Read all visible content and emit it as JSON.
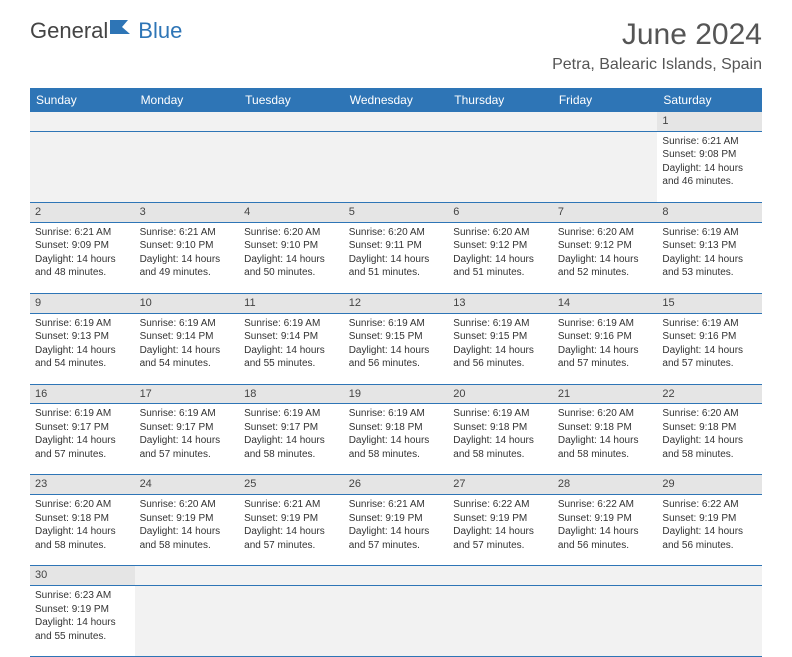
{
  "logo": {
    "text1": "General",
    "text2": "Blue"
  },
  "header": {
    "month": "June 2024",
    "location": "Petra, Balearic Islands, Spain"
  },
  "colors": {
    "header_bg": "#2e75b6",
    "daynum_bg": "#e5e5e5",
    "empty_bg": "#f2f2f2",
    "border": "#2e75b6"
  },
  "weekdays": [
    "Sunday",
    "Monday",
    "Tuesday",
    "Wednesday",
    "Thursday",
    "Friday",
    "Saturday"
  ],
  "weeks": [
    {
      "nums": [
        "",
        "",
        "",
        "",
        "",
        "",
        "1"
      ],
      "cells": [
        null,
        null,
        null,
        null,
        null,
        null,
        {
          "sunrise": "6:21 AM",
          "sunset": "9:08 PM",
          "daylight": "14 hours and 46 minutes."
        }
      ]
    },
    {
      "nums": [
        "2",
        "3",
        "4",
        "5",
        "6",
        "7",
        "8"
      ],
      "cells": [
        {
          "sunrise": "6:21 AM",
          "sunset": "9:09 PM",
          "daylight": "14 hours and 48 minutes."
        },
        {
          "sunrise": "6:21 AM",
          "sunset": "9:10 PM",
          "daylight": "14 hours and 49 minutes."
        },
        {
          "sunrise": "6:20 AM",
          "sunset": "9:10 PM",
          "daylight": "14 hours and 50 minutes."
        },
        {
          "sunrise": "6:20 AM",
          "sunset": "9:11 PM",
          "daylight": "14 hours and 51 minutes."
        },
        {
          "sunrise": "6:20 AM",
          "sunset": "9:12 PM",
          "daylight": "14 hours and 51 minutes."
        },
        {
          "sunrise": "6:20 AM",
          "sunset": "9:12 PM",
          "daylight": "14 hours and 52 minutes."
        },
        {
          "sunrise": "6:19 AM",
          "sunset": "9:13 PM",
          "daylight": "14 hours and 53 minutes."
        }
      ]
    },
    {
      "nums": [
        "9",
        "10",
        "11",
        "12",
        "13",
        "14",
        "15"
      ],
      "cells": [
        {
          "sunrise": "6:19 AM",
          "sunset": "9:13 PM",
          "daylight": "14 hours and 54 minutes."
        },
        {
          "sunrise": "6:19 AM",
          "sunset": "9:14 PM",
          "daylight": "14 hours and 54 minutes."
        },
        {
          "sunrise": "6:19 AM",
          "sunset": "9:14 PM",
          "daylight": "14 hours and 55 minutes."
        },
        {
          "sunrise": "6:19 AM",
          "sunset": "9:15 PM",
          "daylight": "14 hours and 56 minutes."
        },
        {
          "sunrise": "6:19 AM",
          "sunset": "9:15 PM",
          "daylight": "14 hours and 56 minutes."
        },
        {
          "sunrise": "6:19 AM",
          "sunset": "9:16 PM",
          "daylight": "14 hours and 57 minutes."
        },
        {
          "sunrise": "6:19 AM",
          "sunset": "9:16 PM",
          "daylight": "14 hours and 57 minutes."
        }
      ]
    },
    {
      "nums": [
        "16",
        "17",
        "18",
        "19",
        "20",
        "21",
        "22"
      ],
      "cells": [
        {
          "sunrise": "6:19 AM",
          "sunset": "9:17 PM",
          "daylight": "14 hours and 57 minutes."
        },
        {
          "sunrise": "6:19 AM",
          "sunset": "9:17 PM",
          "daylight": "14 hours and 57 minutes."
        },
        {
          "sunrise": "6:19 AM",
          "sunset": "9:17 PM",
          "daylight": "14 hours and 58 minutes."
        },
        {
          "sunrise": "6:19 AM",
          "sunset": "9:18 PM",
          "daylight": "14 hours and 58 minutes."
        },
        {
          "sunrise": "6:19 AM",
          "sunset": "9:18 PM",
          "daylight": "14 hours and 58 minutes."
        },
        {
          "sunrise": "6:20 AM",
          "sunset": "9:18 PM",
          "daylight": "14 hours and 58 minutes."
        },
        {
          "sunrise": "6:20 AM",
          "sunset": "9:18 PM",
          "daylight": "14 hours and 58 minutes."
        }
      ]
    },
    {
      "nums": [
        "23",
        "24",
        "25",
        "26",
        "27",
        "28",
        "29"
      ],
      "cells": [
        {
          "sunrise": "6:20 AM",
          "sunset": "9:18 PM",
          "daylight": "14 hours and 58 minutes."
        },
        {
          "sunrise": "6:20 AM",
          "sunset": "9:19 PM",
          "daylight": "14 hours and 58 minutes."
        },
        {
          "sunrise": "6:21 AM",
          "sunset": "9:19 PM",
          "daylight": "14 hours and 57 minutes."
        },
        {
          "sunrise": "6:21 AM",
          "sunset": "9:19 PM",
          "daylight": "14 hours and 57 minutes."
        },
        {
          "sunrise": "6:22 AM",
          "sunset": "9:19 PM",
          "daylight": "14 hours and 57 minutes."
        },
        {
          "sunrise": "6:22 AM",
          "sunset": "9:19 PM",
          "daylight": "14 hours and 56 minutes."
        },
        {
          "sunrise": "6:22 AM",
          "sunset": "9:19 PM",
          "daylight": "14 hours and 56 minutes."
        }
      ]
    },
    {
      "nums": [
        "30",
        "",
        "",
        "",
        "",
        "",
        ""
      ],
      "cells": [
        {
          "sunrise": "6:23 AM",
          "sunset": "9:19 PM",
          "daylight": "14 hours and 55 minutes."
        },
        null,
        null,
        null,
        null,
        null,
        null
      ]
    }
  ],
  "labels": {
    "sunrise": "Sunrise:",
    "sunset": "Sunset:",
    "daylight": "Daylight:"
  }
}
